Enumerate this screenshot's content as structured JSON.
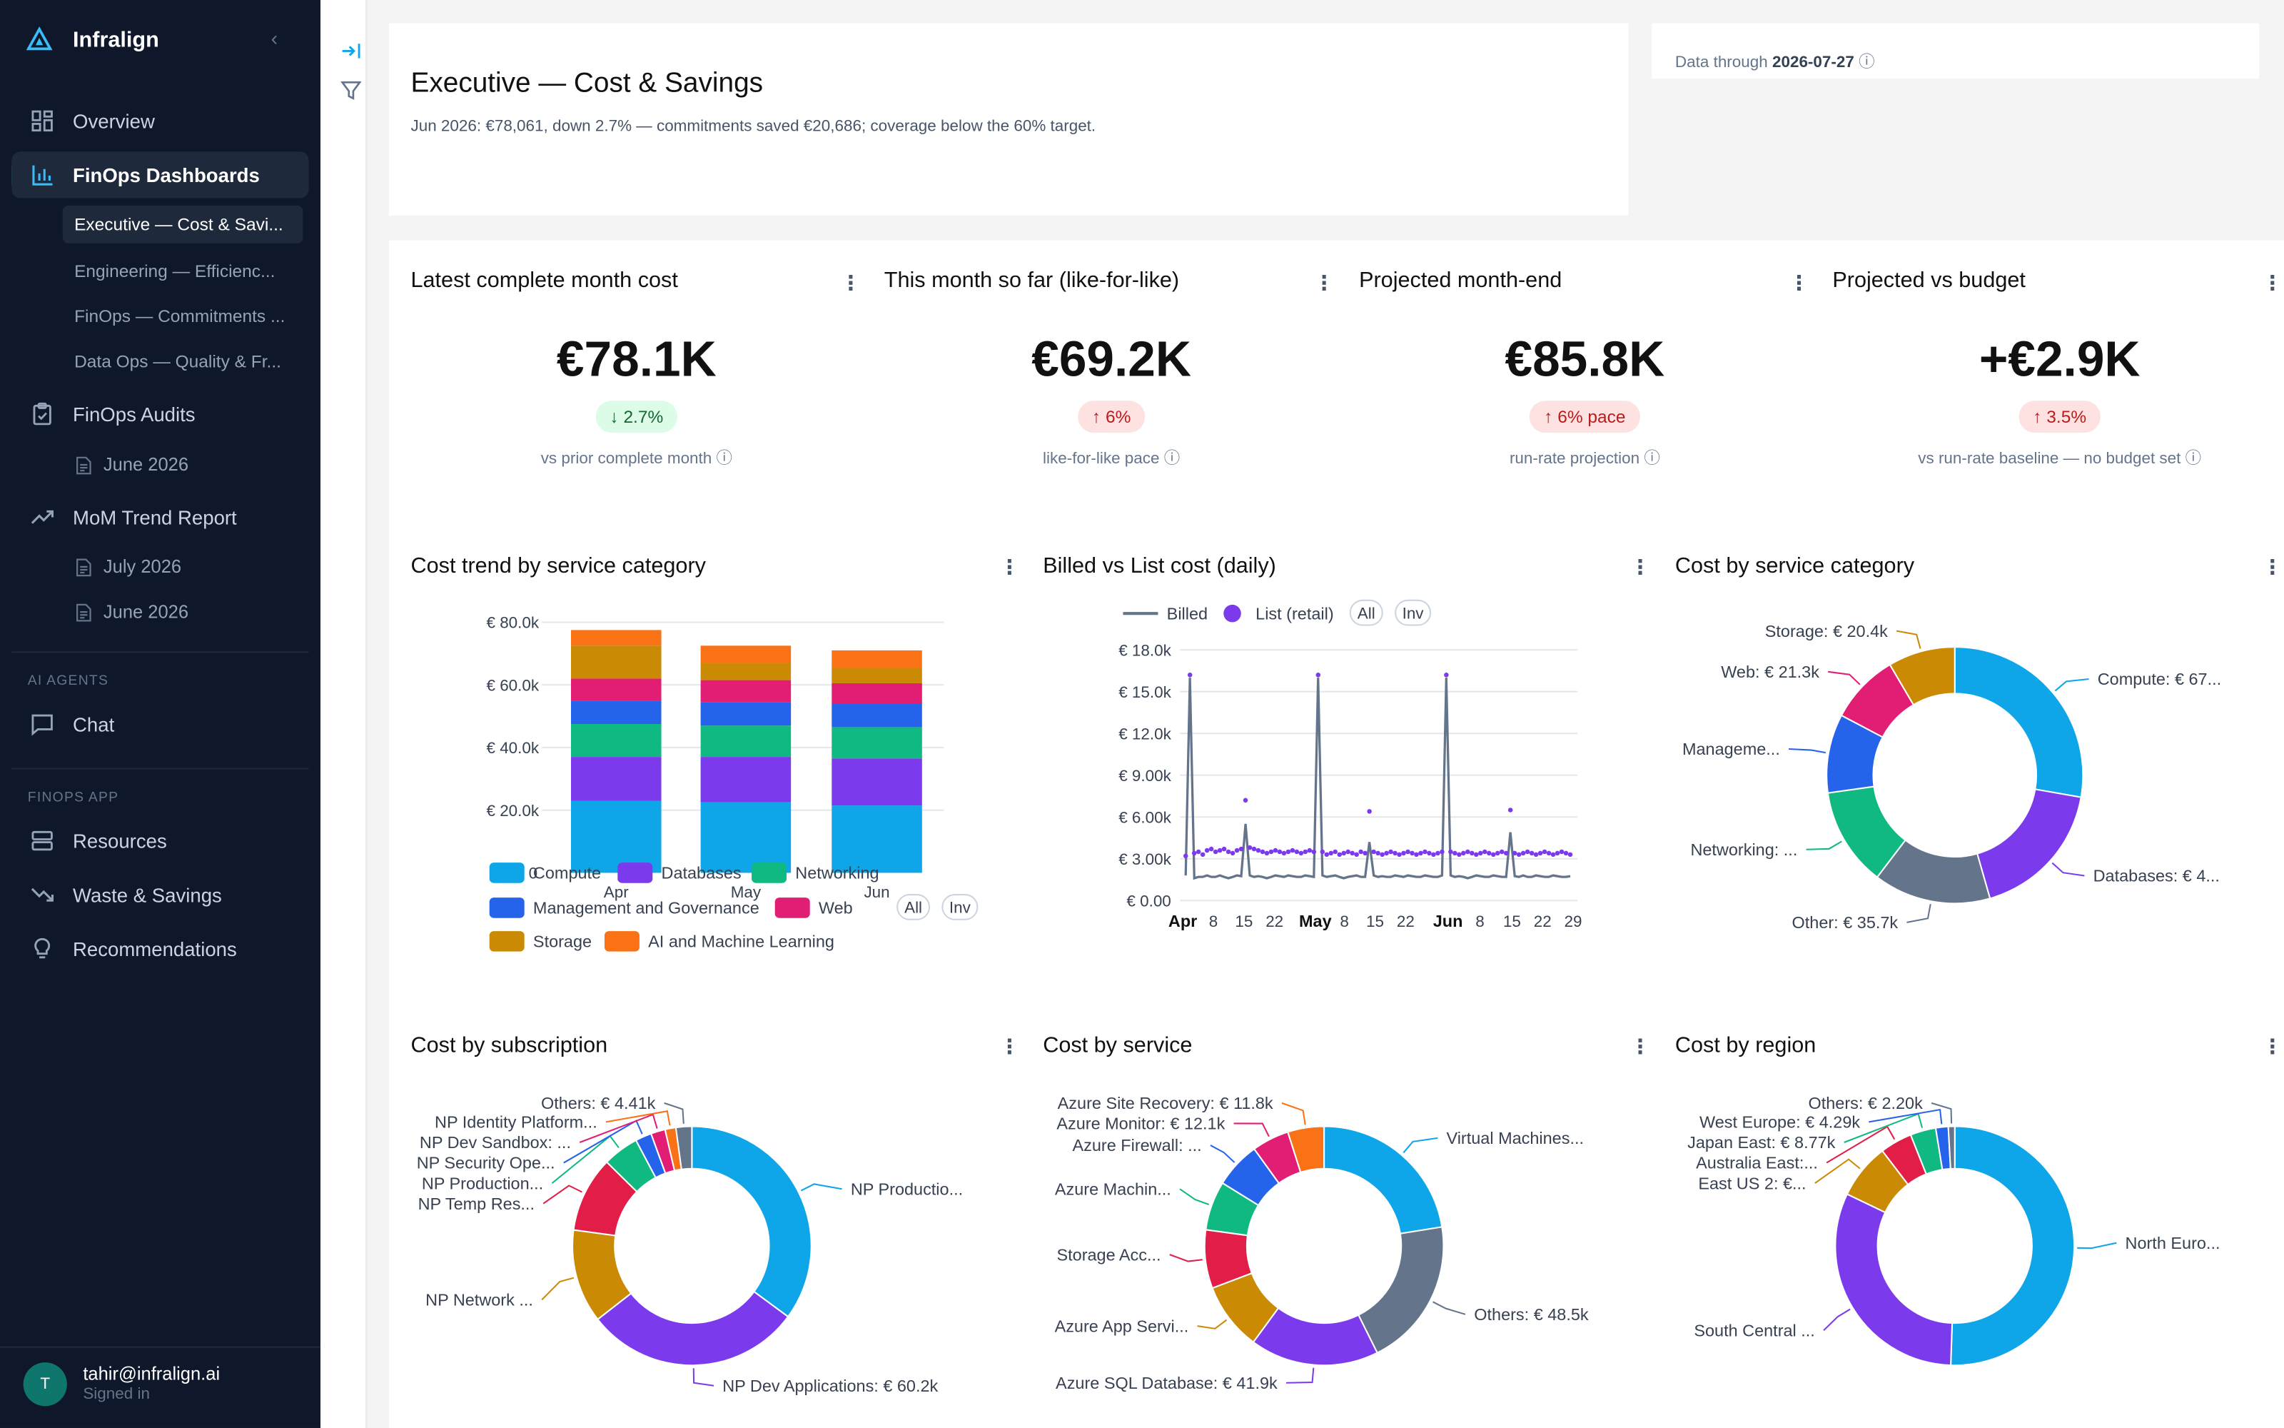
{
  "app": {
    "name": "Infralign"
  },
  "sidebar": {
    "nav": {
      "overview": "Overview",
      "finops_dashboards": "FinOps Dashboards",
      "finops_audits": "FinOps Audits",
      "mom_trend_report": "MoM Trend Report",
      "chat": "Chat",
      "resources": "Resources",
      "waste_savings": "Waste & Savings",
      "recommendations": "Recommendations"
    },
    "dashboards": [
      "Executive — Cost & Savi...",
      "Engineering — Efficienc...",
      "FinOps — Commitments ...",
      "Data Ops — Quality & Fr..."
    ],
    "audits": [
      "June 2026"
    ],
    "trend_reports": [
      "July 2026",
      "June 2026"
    ],
    "sections": {
      "ai_agents": "AI AGENTS",
      "finops_app": "FINOPS APP"
    },
    "user": {
      "initial": "T",
      "email": "tahir@infralign.ai",
      "status": "Signed in"
    }
  },
  "header": {
    "title": "Executive — Cost & Savings",
    "subtitle": "Jun 2026: €78,061, down 2.7% — commitments saved €20,686; coverage below the 60% target.",
    "data_through_label": "Data through",
    "data_through_date": "2026-07-27"
  },
  "kpis": [
    {
      "title": "Latest complete month cost",
      "value": "€78.1K",
      "delta": "↓ 2.7%",
      "delta_tone": "green",
      "note": "vs prior complete month ⓘ"
    },
    {
      "title": "This month so far (like-for-like)",
      "value": "€69.2K",
      "delta": "↑ 6%",
      "delta_tone": "red",
      "note": "like-for-like pace ⓘ"
    },
    {
      "title": "Projected month-end",
      "value": "€85.8K",
      "delta": "↑ 6% pace",
      "delta_tone": "red",
      "note": "run-rate projection ⓘ"
    },
    {
      "title": "Projected vs budget",
      "value": "+€2.9K",
      "delta": "↑ 3.5%",
      "delta_tone": "red",
      "note": "vs run-rate baseline — no budget set ⓘ"
    }
  ],
  "charts": {
    "trend": {
      "title": "Cost trend by service category",
      "legend_all": "All",
      "legend_inv": "Inv"
    },
    "billed": {
      "title": "Billed vs List cost (daily)",
      "legend_all": "All",
      "legend_inv": "Inv"
    },
    "category": {
      "title": "Cost by service category"
    },
    "subscription": {
      "title": "Cost by subscription"
    },
    "service": {
      "title": "Cost by service"
    },
    "region": {
      "title": "Cost by region"
    }
  },
  "chart_data": [
    {
      "type": "bar",
      "title": "Cost trend by service category",
      "stacked": true,
      "categories": [
        "Apr",
        "May",
        "Jun"
      ],
      "ylim": [
        0,
        80000
      ],
      "yticks": [
        "€ 20.0k",
        "€ 40.0k",
        "€ 60.0k",
        "€ 80.0k"
      ],
      "series": [
        {
          "name": "Compute",
          "color": "#0ea5e9",
          "values": [
            23000,
            22500,
            21500
          ]
        },
        {
          "name": "Databases",
          "color": "#7c3aed",
          "values": [
            14000,
            14500,
            15000
          ]
        },
        {
          "name": "Networking",
          "color": "#10b981",
          "values": [
            10500,
            10000,
            10000
          ]
        },
        {
          "name": "Management and Governance",
          "color": "#2563eb",
          "values": [
            7500,
            7500,
            7500
          ]
        },
        {
          "name": "Web",
          "color": "#e11d74",
          "values": [
            7000,
            7000,
            6500
          ]
        },
        {
          "name": "Storage",
          "color": "#ca8a04",
          "values": [
            10500,
            5500,
            5000
          ]
        },
        {
          "name": "AI and Machine Learning",
          "color": "#f97316",
          "values": [
            5000,
            5500,
            5500
          ]
        }
      ]
    },
    {
      "type": "line",
      "title": "Billed vs List cost (daily)",
      "ylim": [
        0,
        18000
      ],
      "yticks": [
        "€ 0.00",
        "€ 3.00k",
        "€ 6.00k",
        "€ 9.00k",
        "€ 12.0k",
        "€ 15.0k",
        "€ 18.0k"
      ],
      "xticks": [
        "Apr",
        "8",
        "15",
        "22",
        "May",
        "8",
        "15",
        "22",
        "Jun",
        "8",
        "15",
        "22",
        "29"
      ],
      "series": [
        {
          "name": "Billed",
          "color": "#64748b",
          "values": [
            1800,
            16000,
            1600,
            1700,
            1700,
            1800,
            1700,
            1700,
            1800,
            1700,
            1600,
            1700,
            1800,
            1750,
            5500,
            1800,
            1700,
            1750,
            1700,
            1600,
            1700,
            1800,
            1750,
            1700,
            1800,
            1750,
            1700,
            1700,
            1800,
            1750,
            1700,
            16000,
            1800,
            1700,
            1750,
            1800,
            1700,
            1600,
            1700,
            1750,
            1800,
            1700,
            1700,
            4200,
            1800,
            1700,
            1750,
            1700,
            1700,
            1800,
            1750,
            1700,
            1800,
            1750,
            1700,
            1700,
            1800,
            1750,
            1700,
            1700,
            1800,
            16000,
            1800,
            1700,
            1750,
            1700,
            1600,
            1700,
            1800,
            1750,
            1700,
            1700,
            1800,
            1750,
            1700,
            1700,
            4900,
            1750,
            1700,
            1800,
            1700,
            1700,
            1800,
            1750,
            1700,
            1700,
            1800,
            1750,
            1700,
            1700,
            1750
          ]
        },
        {
          "name": "List (retail)",
          "color": "#7c3aed",
          "values": [
            3200,
            16200,
            3400,
            3500,
            3300,
            3600,
            3700,
            3500,
            3600,
            3700,
            3500,
            3400,
            3600,
            3700,
            7200,
            3800,
            3700,
            3600,
            3500,
            3400,
            3500,
            3600,
            3500,
            3400,
            3500,
            3600,
            3500,
            3400,
            3500,
            3600,
            3500,
            16200,
            3500,
            3300,
            3400,
            3500,
            3300,
            3400,
            3500,
            3400,
            3300,
            3500,
            3400,
            6400,
            3500,
            3400,
            3300,
            3400,
            3500,
            3400,
            3300,
            3400,
            3500,
            3400,
            3300,
            3400,
            3500,
            3400,
            3300,
            3400,
            3500,
            16200,
            3500,
            3400,
            3300,
            3400,
            3500,
            3400,
            3300,
            3400,
            3500,
            3400,
            3300,
            3400,
            3500,
            3400,
            6500,
            3400,
            3300,
            3400,
            3500,
            3400,
            3300,
            3400,
            3500,
            3400,
            3300,
            3400,
            3500,
            3400,
            3300
          ]
        }
      ]
    },
    {
      "type": "pie",
      "title": "Cost by service category",
      "slices": [
        {
          "label": "Compute: € 67...",
          "value": 67000,
          "color": "#0ea5e9"
        },
        {
          "label": "Databases: € 4...",
          "value": 43000,
          "color": "#7c3aed"
        },
        {
          "label": "Other: € 35.7k",
          "value": 35700,
          "color": "#64748b"
        },
        {
          "label": "Networking: ...",
          "value": 30000,
          "color": "#10b981"
        },
        {
          "label": "Manageme...",
          "value": 24000,
          "color": "#2563eb"
        },
        {
          "label": "Web: € 21.3k",
          "value": 21300,
          "color": "#e11d74"
        },
        {
          "label": "Storage: € 20.4k",
          "value": 20400,
          "color": "#ca8a04"
        }
      ]
    },
    {
      "type": "pie",
      "title": "Cost by subscription",
      "slices": [
        {
          "label": "NP Productio...",
          "value": 72000,
          "color": "#0ea5e9"
        },
        {
          "label": "NP Dev Applications: € 60.2k",
          "value": 60200,
          "color": "#7c3aed"
        },
        {
          "label": "NP Network ...",
          "value": 26000,
          "color": "#ca8a04"
        },
        {
          "label": "NP Temp Res...",
          "value": 21000,
          "color": "#e11d48"
        },
        {
          "label": "NP Production...",
          "value": 10000,
          "color": "#10b981"
        },
        {
          "label": "NP Security Ope...",
          "value": 4500,
          "color": "#2563eb"
        },
        {
          "label": "NP Dev Sandbox: ...",
          "value": 4000,
          "color": "#e11d74"
        },
        {
          "label": "NP Identity Platform...",
          "value": 3000,
          "color": "#f97316"
        },
        {
          "label": "Others: € 4.41k",
          "value": 4410,
          "color": "#64748b"
        }
      ]
    },
    {
      "type": "pie",
      "title": "Cost by service",
      "slices": [
        {
          "label": "Virtual Machines...",
          "value": 54000,
          "color": "#0ea5e9"
        },
        {
          "label": "Others: € 48.5k",
          "value": 48500,
          "color": "#64748b"
        },
        {
          "label": "Azure SQL Database: € 41.9k",
          "value": 41900,
          "color": "#7c3aed"
        },
        {
          "label": "Azure App Servi...",
          "value": 22000,
          "color": "#ca8a04"
        },
        {
          "label": "Storage Acc...",
          "value": 19000,
          "color": "#e11d48"
        },
        {
          "label": "Azure Machin...",
          "value": 16000,
          "color": "#10b981"
        },
        {
          "label": "Azure Firewall: ...",
          "value": 15000,
          "color": "#2563eb"
        },
        {
          "label": "Azure Monitor: € 12.1k",
          "value": 12100,
          "color": "#e11d74"
        },
        {
          "label": "Azure Site Recovery: € 11.8k",
          "value": 11800,
          "color": "#f97316"
        }
      ]
    },
    {
      "type": "pie",
      "title": "Cost by region",
      "slices": [
        {
          "label": "North Euro...",
          "value": 128000,
          "color": "#0ea5e9"
        },
        {
          "label": "South Central ...",
          "value": 80000,
          "color": "#7c3aed"
        },
        {
          "label": "East US 2: €...",
          "value": 19000,
          "color": "#ca8a04"
        },
        {
          "label": "Australia East:...",
          "value": 11000,
          "color": "#e11d48"
        },
        {
          "label": "Japan East: € 8.77k",
          "value": 8770,
          "color": "#10b981"
        },
        {
          "label": "West Europe: € 4.29k",
          "value": 4290,
          "color": "#2563eb"
        },
        {
          "label": "Others: € 2.20k",
          "value": 2200,
          "color": "#64748b"
        }
      ]
    }
  ]
}
